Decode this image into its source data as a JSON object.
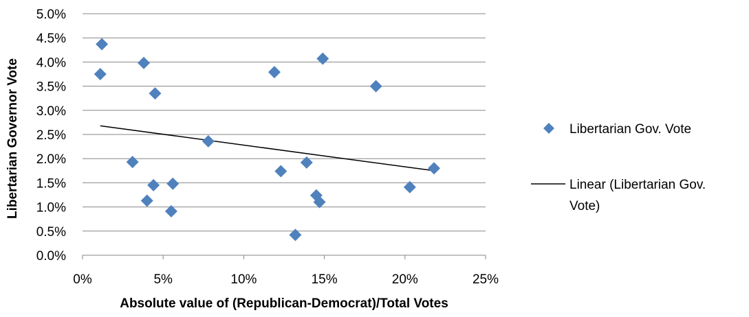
{
  "chart_data": {
    "type": "scatter",
    "xlabel": "Absolute value of (Republican-Democrat)/Total Votes",
    "ylabel": "Libertarian Governor Vote",
    "xlim": [
      0,
      0.25
    ],
    "ylim": [
      0,
      0.05
    ],
    "x_ticks": [
      0,
      0.05,
      0.1,
      0.15,
      0.2,
      0.25
    ],
    "x_tick_labels": [
      "0%",
      "5%",
      "10%",
      "15%",
      "20%",
      "25%"
    ],
    "y_ticks": [
      0,
      0.005,
      0.01,
      0.015,
      0.02,
      0.025,
      0.03,
      0.035,
      0.04,
      0.045,
      0.05
    ],
    "y_tick_labels": [
      "0.0%",
      "0.5%",
      "1.0%",
      "1.5%",
      "2.0%",
      "2.5%",
      "3.0%",
      "3.5%",
      "4.0%",
      "4.5%",
      "5.0%"
    ],
    "grid": "horizontal",
    "legend_position": "right",
    "series": [
      {
        "name": "Libertarian Gov. Vote",
        "color": "#4F81BD",
        "marker": "diamond",
        "points": [
          {
            "x": 0.011,
            "y": 0.0375
          },
          {
            "x": 0.012,
            "y": 0.0437
          },
          {
            "x": 0.031,
            "y": 0.0193
          },
          {
            "x": 0.038,
            "y": 0.0398
          },
          {
            "x": 0.04,
            "y": 0.0113
          },
          {
            "x": 0.044,
            "y": 0.0145
          },
          {
            "x": 0.045,
            "y": 0.0335
          },
          {
            "x": 0.055,
            "y": 0.0091
          },
          {
            "x": 0.056,
            "y": 0.0148
          },
          {
            "x": 0.078,
            "y": 0.0236
          },
          {
            "x": 0.119,
            "y": 0.0379
          },
          {
            "x": 0.123,
            "y": 0.0174
          },
          {
            "x": 0.132,
            "y": 0.0042
          },
          {
            "x": 0.139,
            "y": 0.0192
          },
          {
            "x": 0.145,
            "y": 0.0124
          },
          {
            "x": 0.147,
            "y": 0.011
          },
          {
            "x": 0.149,
            "y": 0.0407
          },
          {
            "x": 0.182,
            "y": 0.035
          },
          {
            "x": 0.203,
            "y": 0.0141
          },
          {
            "x": 0.218,
            "y": 0.018
          }
        ]
      }
    ],
    "trendline": {
      "name": "Linear (Libertarian Gov. Vote)",
      "color": "#000000",
      "x_range": [
        0.011,
        0.218
      ],
      "start_y": 0.0268,
      "end_y": 0.0175
    }
  }
}
